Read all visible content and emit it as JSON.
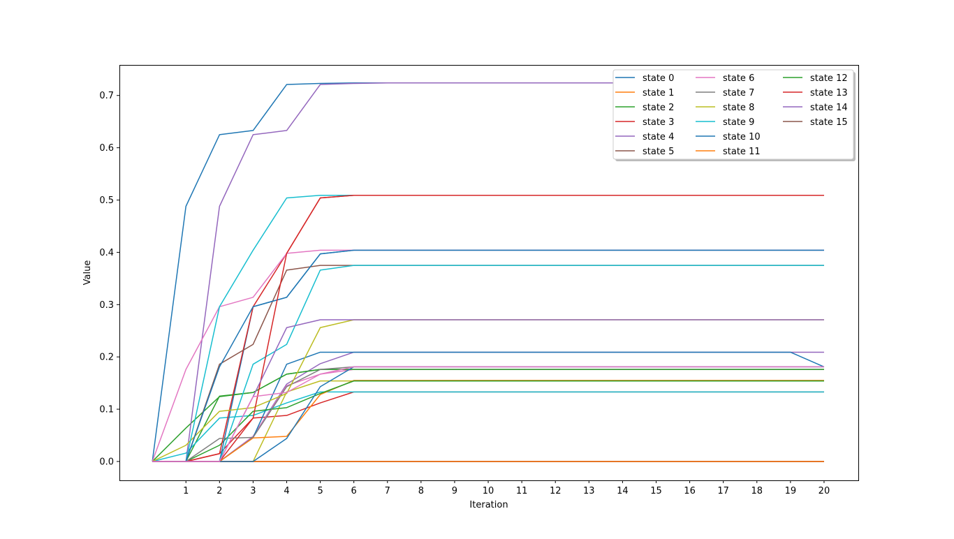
{
  "chart_data": {
    "type": "line",
    "title": "",
    "xlabel": "Iteration",
    "ylabel": "Value",
    "xlim": [
      -0.98,
      21.02
    ],
    "ylim": [
      -0.0361,
      0.7584
    ],
    "xticks": [
      1,
      2,
      3,
      4,
      5,
      6,
      7,
      8,
      9,
      10,
      11,
      12,
      13,
      14,
      15,
      16,
      17,
      18,
      19,
      20
    ],
    "xtick_labels": [
      "1",
      "2",
      "3",
      "4",
      "5",
      "6",
      "7",
      "8",
      "9",
      "10",
      "11",
      "12",
      "13",
      "14",
      "15",
      "16",
      "17",
      "18",
      "19",
      "20"
    ],
    "yticks": [
      0.0,
      0.1,
      0.2,
      0.3,
      0.4,
      0.5,
      0.6,
      0.7
    ],
    "ytick_labels": [
      "0.0",
      "0.1",
      "0.2",
      "0.3",
      "0.4",
      "0.5",
      "0.6",
      "0.7"
    ],
    "grid": false,
    "legend_position": "top-right",
    "legend_columns": 3,
    "x": [
      0,
      1,
      2,
      3,
      4,
      5,
      6,
      7,
      8,
      9,
      10,
      11,
      12,
      13,
      14,
      15,
      16,
      17,
      18,
      19,
      20
    ],
    "series": [
      {
        "name": "state 0",
        "color": "#1f77b4",
        "values": [
          0,
          0.488,
          0.625,
          0.633,
          0.721,
          0.723,
          0.724,
          0.724,
          0.724,
          0.724,
          0.724,
          0.724,
          0.724,
          0.724,
          0.724,
          0.724,
          0.724,
          0.724,
          0.724,
          0.724,
          0.724
        ]
      },
      {
        "name": "state 1",
        "color": "#ff7f0e",
        "values": [
          0,
          0,
          0,
          0,
          0,
          0,
          0,
          0,
          0,
          0,
          0,
          0,
          0,
          0,
          0,
          0,
          0,
          0,
          0,
          0,
          0
        ]
      },
      {
        "name": "state 2",
        "color": "#2ca02c",
        "values": [
          0,
          0,
          0.125,
          0.132,
          0.167,
          0.176,
          0.176,
          0.176,
          0.176,
          0.176,
          0.176,
          0.176,
          0.176,
          0.176,
          0.176,
          0.176,
          0.176,
          0.176,
          0.176,
          0.176,
          0.176
        ]
      },
      {
        "name": "state 3",
        "color": "#d62728",
        "values": [
          0,
          0,
          0.015,
          0.083,
          0.088,
          0.112,
          0.133,
          0.133,
          0.133,
          0.133,
          0.133,
          0.133,
          0.133,
          0.133,
          0.133,
          0.133,
          0.133,
          0.133,
          0.133,
          0.133,
          0.133
        ]
      },
      {
        "name": "state 4",
        "color": "#9467bd",
        "values": [
          0,
          0,
          0,
          0.048,
          0.148,
          0.187,
          0.209,
          0.209,
          0.209,
          0.209,
          0.209,
          0.209,
          0.209,
          0.209,
          0.209,
          0.209,
          0.209,
          0.209,
          0.209,
          0.209,
          0.209
        ]
      },
      {
        "name": "state 5",
        "color": "#8c564b",
        "values": [
          0,
          0,
          0,
          0,
          0,
          0,
          0,
          0,
          0,
          0,
          0,
          0,
          0,
          0,
          0,
          0,
          0,
          0,
          0,
          0,
          0
        ]
      },
      {
        "name": "state 6",
        "color": "#e377c2",
        "values": [
          0,
          0,
          0,
          0.048,
          0.145,
          0.167,
          0.176,
          0.176,
          0.176,
          0.176,
          0.176,
          0.176,
          0.176,
          0.176,
          0.176,
          0.176,
          0.176,
          0.176,
          0.176,
          0.176,
          0.176
        ]
      },
      {
        "name": "state 7",
        "color": "#7f7f7f",
        "values": [
          0,
          0,
          0,
          0,
          0,
          0,
          0,
          0,
          0,
          0,
          0,
          0,
          0,
          0,
          0,
          0,
          0,
          0,
          0,
          0,
          0
        ]
      },
      {
        "name": "state 8",
        "color": "#bcbd22",
        "values": [
          0,
          0,
          0,
          0,
          0.133,
          0.154,
          0.154,
          0.154,
          0.154,
          0.154,
          0.154,
          0.154,
          0.154,
          0.154,
          0.154,
          0.154,
          0.154,
          0.154,
          0.154,
          0.154,
          0.154
        ]
      },
      {
        "name": "state 9",
        "color": "#17becf",
        "values": [
          0,
          0.016,
          0.083,
          0.088,
          0.112,
          0.133,
          0.133,
          0.133,
          0.133,
          0.133,
          0.133,
          0.133,
          0.133,
          0.133,
          0.133,
          0.133,
          0.133,
          0.133,
          0.133,
          0.133,
          0.133
        ]
      },
      {
        "name": "state 10",
        "color": "#1f77b4",
        "values": [
          0,
          0,
          0,
          0.046,
          0.186,
          0.209,
          0.209,
          0.209,
          0.209,
          0.209,
          0.209,
          0.209,
          0.209,
          0.209,
          0.209,
          0.209,
          0.209,
          0.209,
          0.209,
          0.209,
          0.181
        ]
      },
      {
        "name": "state 11",
        "color": "#ff7f0e",
        "values": [
          0,
          0,
          0,
          0.045,
          0.048,
          0.128,
          0.155,
          0.155,
          0.155,
          0.155,
          0.155,
          0.155,
          0.155,
          0.155,
          0.155,
          0.155,
          0.155,
          0.155,
          0.155,
          0.155,
          0.155
        ]
      },
      {
        "name": "state 12",
        "color": "#2ca02c",
        "values": [
          0,
          0,
          0.031,
          0.096,
          0.103,
          0.13,
          0.154,
          0.154,
          0.154,
          0.154,
          0.154,
          0.154,
          0.154,
          0.154,
          0.154,
          0.154,
          0.154,
          0.154,
          0.154,
          0.154,
          0.154
        ]
      },
      {
        "name": "state 13",
        "color": "#d62728",
        "values": [
          0,
          0,
          0,
          0,
          0,
          0,
          0,
          0,
          0,
          0,
          0,
          0,
          0,
          0,
          0,
          0,
          0,
          0,
          0,
          0,
          0
        ]
      },
      {
        "name": "state 14",
        "color": "#9467bd",
        "values": [
          0,
          0,
          0,
          0,
          0,
          0,
          0,
          0,
          0,
          0,
          0,
          0,
          0,
          0,
          0,
          0,
          0,
          0,
          0,
          0,
          0
        ]
      },
      {
        "name": "state 15",
        "color": "#8c564b",
        "values": [
          0,
          0,
          0,
          0,
          0,
          0,
          0,
          0,
          0,
          0,
          0,
          0,
          0,
          0,
          0,
          0,
          0,
          0,
          0,
          0,
          0
        ]
      },
      {
        "name": "",
        "color": "#1f77b4",
        "values": [
          0,
          0,
          0,
          0.296,
          0.314,
          0.397,
          0.404,
          0.404,
          0.404,
          0.404,
          0.404,
          0.404,
          0.404,
          0.404,
          0.404,
          0.404,
          0.404,
          0.404,
          0.404,
          0.404,
          0.404
        ]
      },
      {
        "name": "",
        "color": "#ff7f0e",
        "values": [
          0,
          0,
          0,
          0,
          0,
          0,
          0,
          0,
          0,
          0,
          0,
          0,
          0,
          0,
          0,
          0,
          0,
          0,
          0,
          0,
          0
        ]
      },
      {
        "name": "",
        "color": "#2ca02c",
        "values": [
          0,
          0.064,
          0.124,
          0.132,
          0.167,
          0.176,
          0.176,
          0.176,
          0.176,
          0.176,
          0.176,
          0.176,
          0.176,
          0.176,
          0.176,
          0.176,
          0.176,
          0.176,
          0.176,
          0.176,
          0.176
        ]
      },
      {
        "name": "",
        "color": "#d62728",
        "values": [
          0,
          0,
          0.015,
          0.296,
          0.398,
          0.504,
          0.509,
          0.509,
          0.509,
          0.509,
          0.509,
          0.509,
          0.509,
          0.509,
          0.509,
          0.509,
          0.509,
          0.509,
          0.509,
          0.509,
          0.509
        ]
      },
      {
        "name": "",
        "color": "#9467bd",
        "values": [
          0,
          0,
          0.488,
          0.625,
          0.633,
          0.721,
          0.723,
          0.724,
          0.724,
          0.724,
          0.724,
          0.724,
          0.724,
          0.724,
          0.724,
          0.724,
          0.724,
          0.724,
          0.724,
          0.724,
          0.724
        ]
      },
      {
        "name": "",
        "color": "#8c564b",
        "values": [
          0,
          0,
          0.186,
          0.224,
          0.366,
          0.375,
          0.375,
          0.375,
          0.375,
          0.375,
          0.375,
          0.375,
          0.375,
          0.375,
          0.375,
          0.375,
          0.375,
          0.375,
          0.375,
          0.375,
          0.375
        ]
      },
      {
        "name": "",
        "color": "#e377c2",
        "values": [
          0,
          0.176,
          0.296,
          0.314,
          0.398,
          0.404,
          0.404,
          0.404,
          0.404,
          0.404,
          0.404,
          0.404,
          0.404,
          0.404,
          0.404,
          0.404,
          0.404,
          0.404,
          0.404,
          0.404,
          0.404
        ]
      },
      {
        "name": "",
        "color": "#7f7f7f",
        "values": [
          0,
          0,
          0.044,
          0.046,
          0.143,
          0.176,
          0.181,
          0.181,
          0.181,
          0.181,
          0.181,
          0.181,
          0.181,
          0.181,
          0.181,
          0.181,
          0.181,
          0.181,
          0.181,
          0.181,
          0.181
        ]
      },
      {
        "name": "",
        "color": "#bcbd22",
        "values": [
          0,
          0.031,
          0.096,
          0.103,
          0.13,
          0.256,
          0.271,
          0.271,
          0.271,
          0.271,
          0.271,
          0.271,
          0.271,
          0.271,
          0.271,
          0.271,
          0.271,
          0.271,
          0.271,
          0.271,
          0.271
        ]
      },
      {
        "name": "",
        "color": "#17becf",
        "values": [
          0,
          0,
          0.296,
          0.404,
          0.504,
          0.509,
          0.509,
          0.509,
          0.509,
          0.509,
          0.509,
          0.509,
          0.509,
          0.509,
          0.509,
          0.509,
          0.509,
          0.509,
          0.509,
          0.509,
          0.509
        ]
      },
      {
        "name": "",
        "color": "#17becf",
        "values": [
          0,
          0,
          0,
          0.186,
          0.224,
          0.366,
          0.375,
          0.375,
          0.375,
          0.375,
          0.375,
          0.375,
          0.375,
          0.375,
          0.375,
          0.375,
          0.375,
          0.375,
          0.375,
          0.375,
          0.375
        ]
      },
      {
        "name": "",
        "color": "#1f77b4",
        "values": [
          0,
          0,
          0.181,
          0.296,
          0.314,
          0.397,
          0.404,
          0.404,
          0.404,
          0.404,
          0.404,
          0.404,
          0.404,
          0.404,
          0.404,
          0.404,
          0.404,
          0.404,
          0.404,
          0.404,
          0.404
        ]
      },
      {
        "name": "",
        "color": "#1f77b4",
        "values": [
          0,
          0,
          0,
          0,
          0.044,
          0.143,
          0.181,
          0.181,
          0.181,
          0.181,
          0.181,
          0.181,
          0.181,
          0.181,
          0.181,
          0.181,
          0.181,
          0.181,
          0.181,
          0.181,
          0.181
        ]
      },
      {
        "name": "",
        "color": "#d62728",
        "values": [
          0,
          0,
          0,
          0.083,
          0.398,
          0.504,
          0.509,
          0.509,
          0.509,
          0.509,
          0.509,
          0.509,
          0.509,
          0.509,
          0.509,
          0.509,
          0.509,
          0.509,
          0.509,
          0.509,
          0.509
        ]
      },
      {
        "name": "",
        "color": "#9467bd",
        "values": [
          0,
          0,
          0,
          0.124,
          0.256,
          0.271,
          0.271,
          0.271,
          0.271,
          0.271,
          0.271,
          0.271,
          0.271,
          0.271,
          0.271,
          0.271,
          0.271,
          0.271,
          0.271,
          0.271,
          0.271
        ]
      },
      {
        "name": "",
        "color": "#e377c2",
        "values": [
          0,
          0,
          0,
          0.124,
          0.132,
          0.167,
          0.181,
          0.181,
          0.181,
          0.181,
          0.181,
          0.181,
          0.181,
          0.181,
          0.181,
          0.181,
          0.181,
          0.181,
          0.181,
          0.181,
          0.181
        ]
      }
    ]
  }
}
